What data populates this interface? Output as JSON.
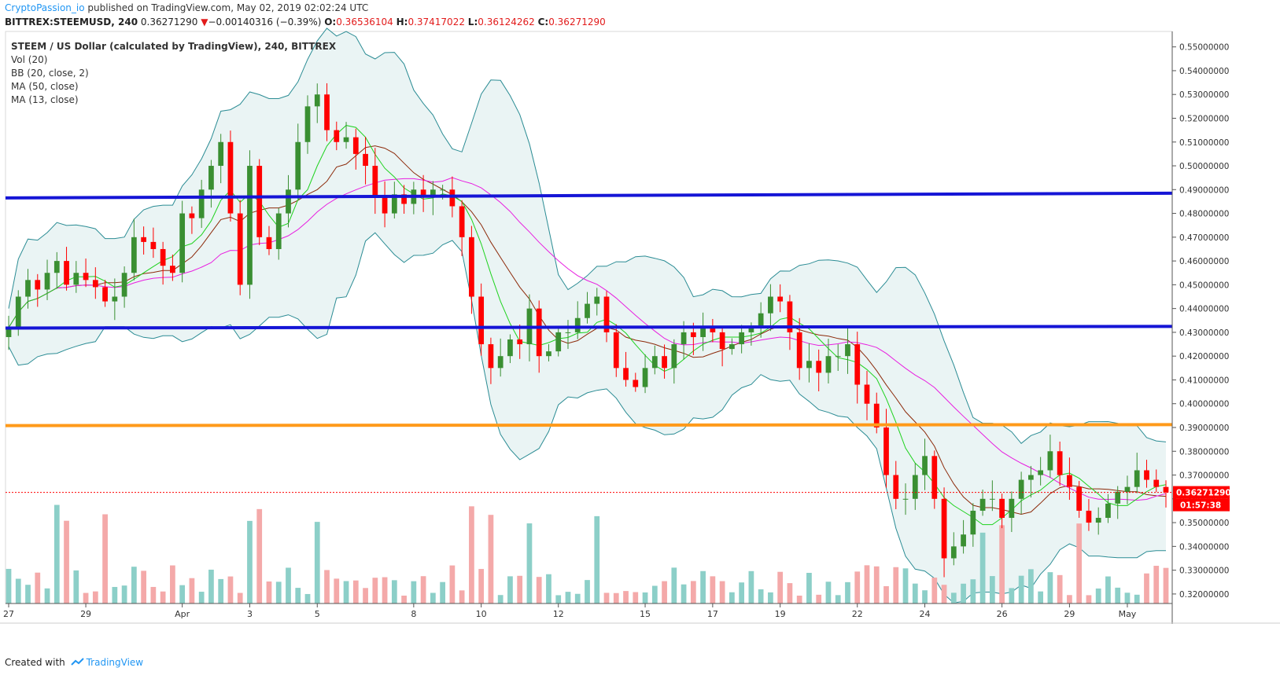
{
  "header": {
    "publisher": "CryptoPassion_io",
    "published_text": "published on TradingView.com, May 02, 2019 02:02:24 UTC",
    "symbol": "BITTREX:STEEMUSD, 240",
    "price": "0.36271290",
    "change_arrow": "▼",
    "change": "−0.00140316 (−0.39%)",
    "o_label": "O:",
    "o": "0.36536104",
    "h_label": "H:",
    "h": "0.37417022",
    "l_label": "L:",
    "l": "0.36124262",
    "c_label": "C:",
    "c": "0.36271290"
  },
  "legend": {
    "title": "STEEM / US Dollar (calculated by TradingView), 240, BITTREX",
    "items": [
      "Vol (20)",
      "BB (20, close, 2)",
      "MA (50, close)",
      "MA (13, close)"
    ]
  },
  "footer": {
    "created_with": "Created with",
    "brand": "TradingView"
  },
  "colors": {
    "up": "#3a8f32",
    "down": "#ff0000",
    "vol_up": "#8ccfc8",
    "vol_down": "#f4a9a9",
    "bb": "#2b8c94",
    "bb_fill": "#eaf4f4",
    "ma50": "#e81fe0",
    "ma13": "#1ed21e",
    "mid": "#8c2a0a",
    "level_blue": "#1515d6",
    "level_orange": "#ff9a1a",
    "price_label": "#ff0000"
  },
  "chart_data": {
    "type": "candlestick",
    "y_range": [
      0.316,
      0.5565
    ],
    "y_ticks": [
      "0.55000000",
      "0.54000000",
      "0.53000000",
      "0.52000000",
      "0.51000000",
      "0.50000000",
      "0.49000000",
      "0.48000000",
      "0.47000000",
      "0.46000000",
      "0.45000000",
      "0.44000000",
      "0.43000000",
      "0.42000000",
      "0.41000000",
      "0.40000000",
      "0.39000000",
      "0.38000000",
      "0.37000000",
      "0.36000000",
      "0.35000000",
      "0.34000000",
      "0.33000000",
      "0.32000000"
    ],
    "x_ticks": [
      "27",
      "29",
      "Apr",
      "3",
      "5",
      "8",
      "10",
      "12",
      "15",
      "17",
      "19",
      "22",
      "24",
      "26",
      "29",
      "May"
    ],
    "current_price": "0.36271290",
    "countdown": "01:57:38",
    "horizontal_levels": [
      {
        "name": "resistance-upper",
        "start": 0.4865,
        "end": 0.4885,
        "color": "#1515d6"
      },
      {
        "name": "support-middle",
        "start": 0.4318,
        "end": 0.4325,
        "color": "#1515d6"
      },
      {
        "name": "support-lower",
        "start": 0.3908,
        "end": 0.3912,
        "color": "#ff9a1a"
      }
    ],
    "close_path": [
      0.432,
      0.445,
      0.452,
      0.448,
      0.455,
      0.46,
      0.45,
      0.455,
      0.452,
      0.449,
      0.443,
      0.445,
      0.455,
      0.47,
      0.468,
      0.465,
      0.458,
      0.455,
      0.48,
      0.478,
      0.49,
      0.5,
      0.51,
      0.48,
      0.45,
      0.5,
      0.47,
      0.465,
      0.48,
      0.49,
      0.51,
      0.525,
      0.53,
      0.515,
      0.51,
      0.512,
      0.505,
      0.5,
      0.487,
      0.48,
      0.488,
      0.484,
      0.49,
      0.487,
      0.49,
      0.49,
      0.483,
      0.47,
      0.445,
      0.425,
      0.415,
      0.42,
      0.427,
      0.425,
      0.44,
      0.42,
      0.422,
      0.43,
      0.43,
      0.436,
      0.442,
      0.445,
      0.43,
      0.415,
      0.41,
      0.407,
      0.415,
      0.42,
      0.415,
      0.425,
      0.43,
      0.428,
      0.432,
      0.43,
      0.423,
      0.425,
      0.43,
      0.432,
      0.438,
      0.445,
      0.443,
      0.43,
      0.415,
      0.418,
      0.413,
      0.42,
      0.42,
      0.425,
      0.408,
      0.4,
      0.39,
      0.37,
      0.36,
      0.36,
      0.37,
      0.378,
      0.36,
      0.335,
      0.34,
      0.345,
      0.355,
      0.36,
      0.36,
      0.352,
      0.36,
      0.368,
      0.37,
      0.372,
      0.38,
      0.37,
      0.365,
      0.355,
      0.35,
      0.352,
      0.358,
      0.363,
      0.365,
      0.372,
      0.368,
      0.365,
      0.3627
    ]
  }
}
